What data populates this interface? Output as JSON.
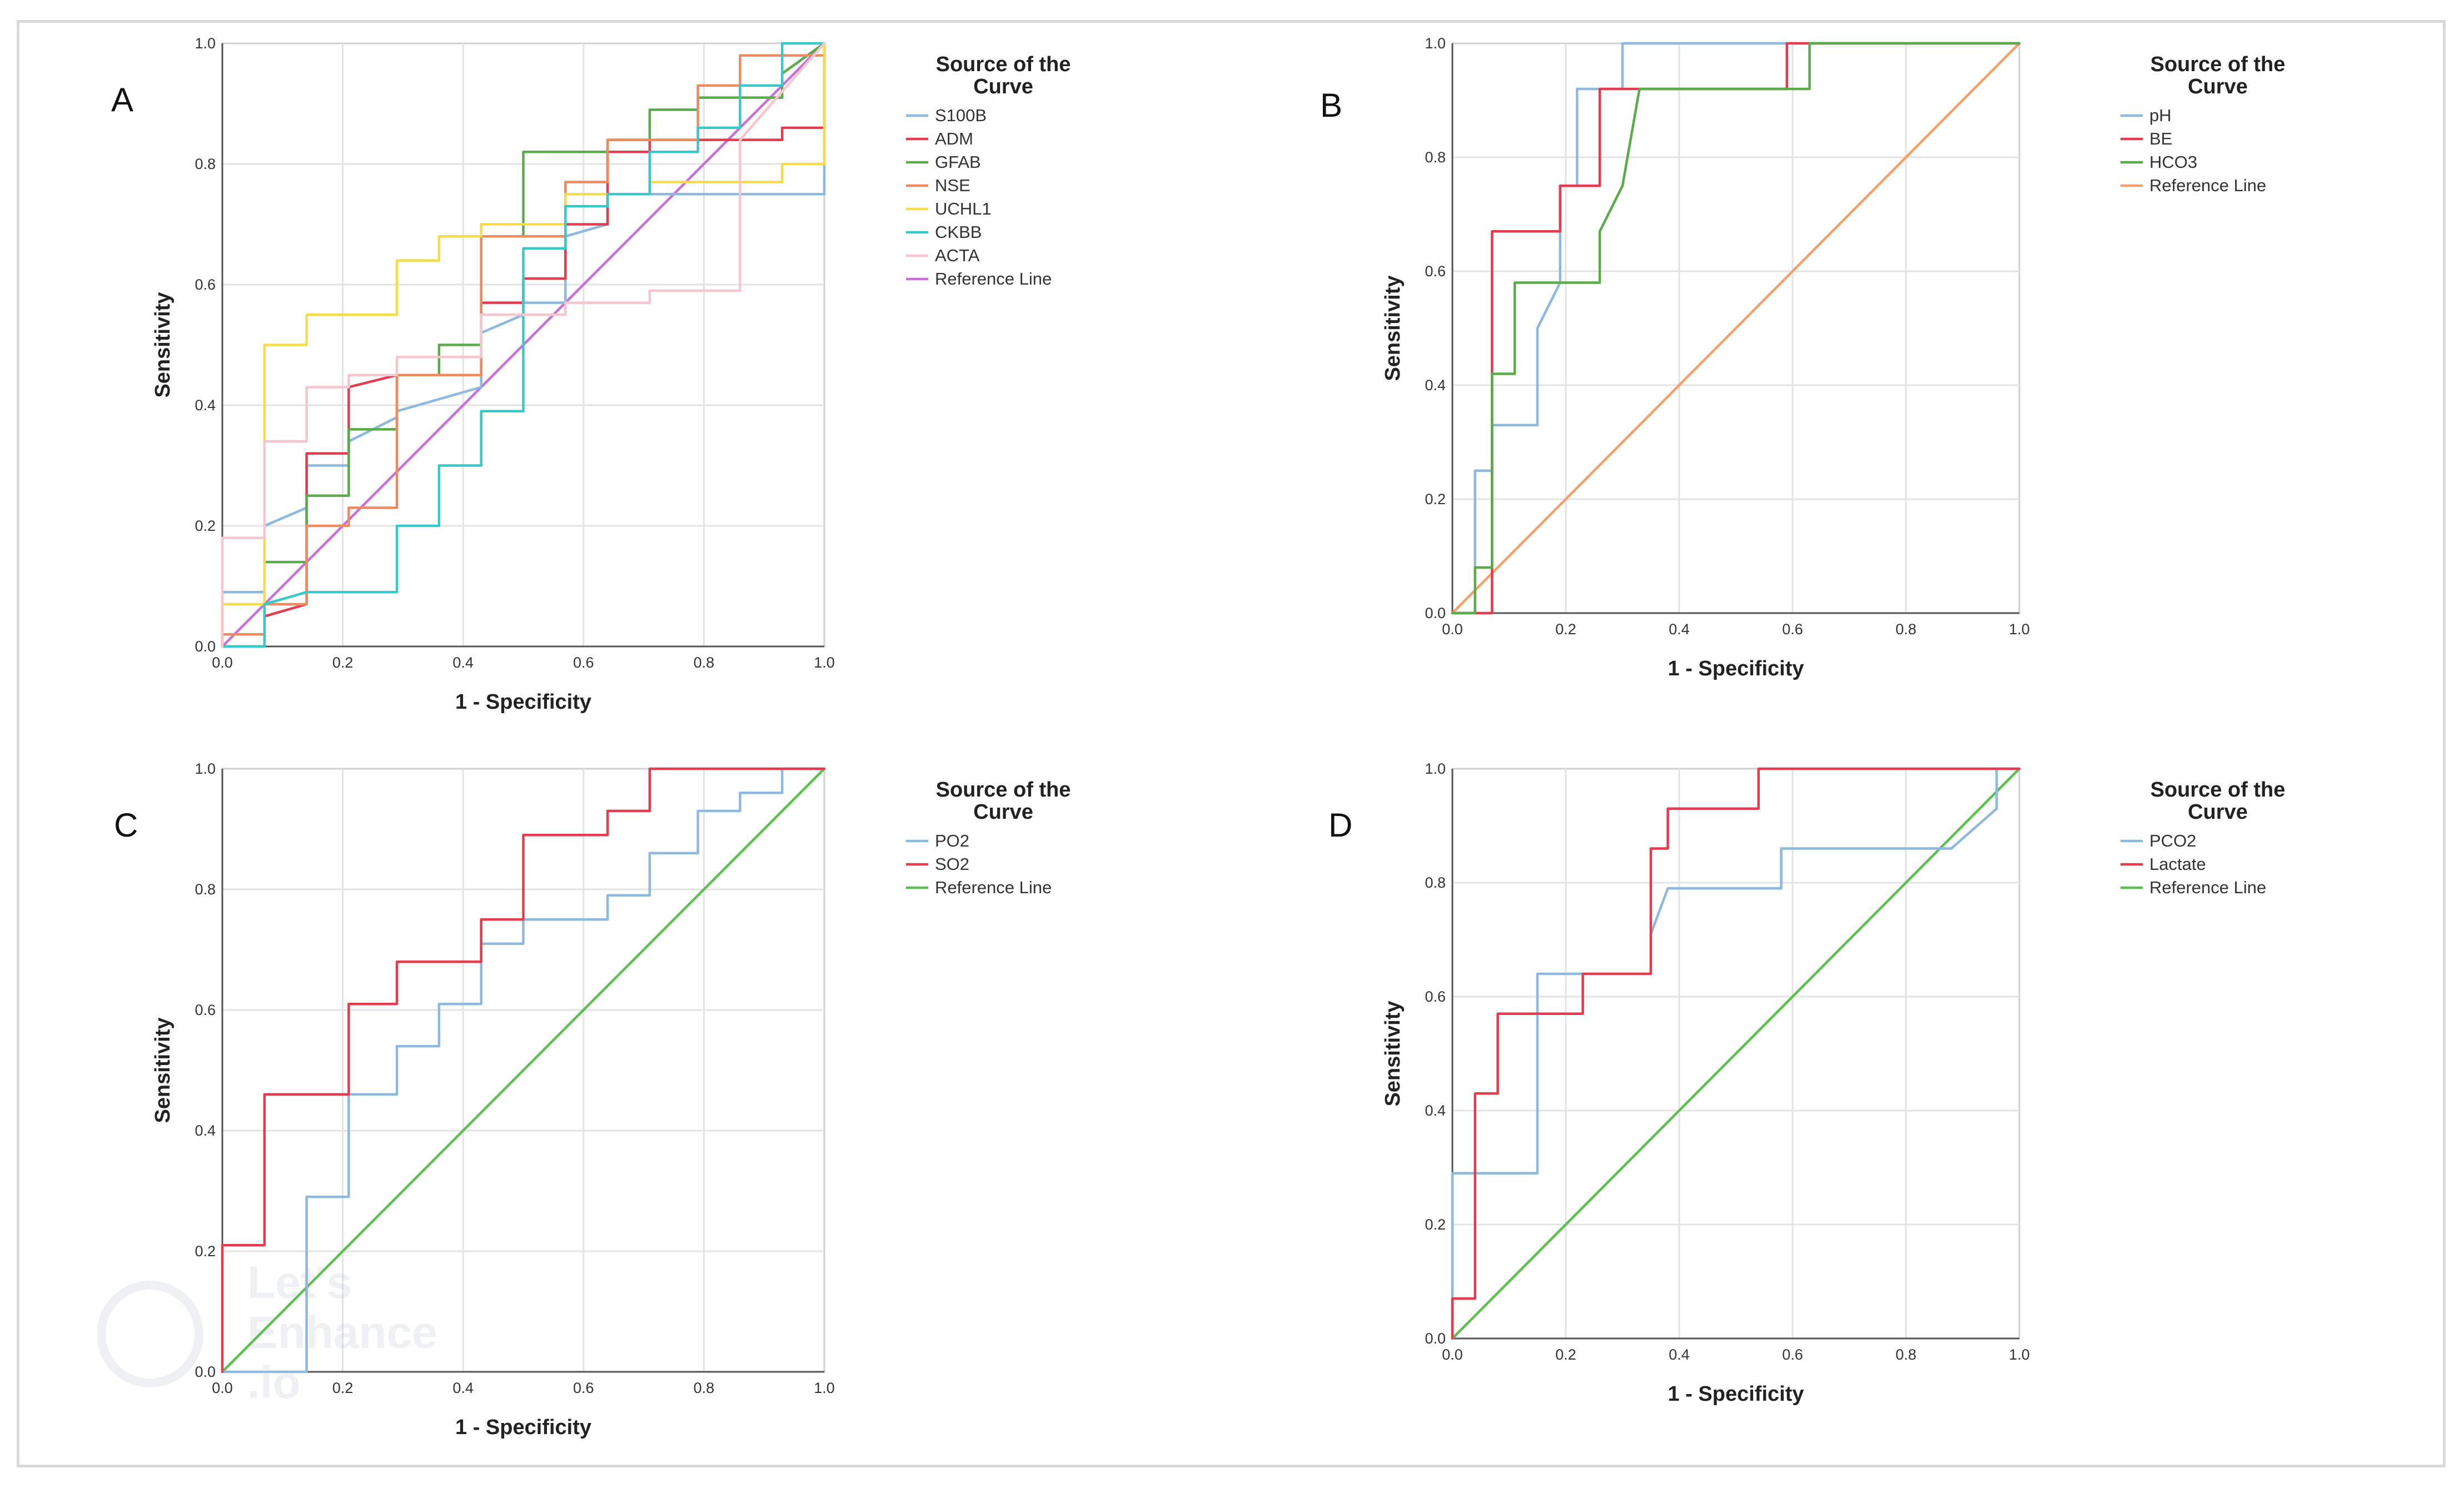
{
  "chart_data": [
    {
      "panel": "A",
      "type": "line",
      "xlabel": "1 - Specificity",
      "ylabel": "Sensitivity",
      "xlim": [
        0,
        1
      ],
      "ylim": [
        0,
        1
      ],
      "xticks": [
        "0.0",
        "0.2",
        "0.4",
        "0.6",
        "0.8",
        "1.0"
      ],
      "yticks": [
        "0.0",
        "0.2",
        "0.4",
        "0.6",
        "0.8",
        "1.0"
      ],
      "legend_title": "Source of the Curve",
      "legend_position": "right",
      "series": [
        {
          "name": "S100B",
          "color": "#8db8e0",
          "x": [
            0,
            0,
            0.07,
            0.07,
            0.14,
            0.14,
            0.21,
            0.21,
            0.29,
            0.29,
            0.43,
            0.43,
            0.5,
            0.5,
            0.57,
            0.57,
            0.64,
            0.64,
            0.71,
            0.71,
            0.86,
            0.86,
            1.0,
            1.0
          ],
          "y": [
            0,
            0.09,
            0.09,
            0.2,
            0.23,
            0.3,
            0.3,
            0.34,
            0.38,
            0.39,
            0.43,
            0.52,
            0.55,
            0.57,
            0.57,
            0.68,
            0.7,
            0.75,
            0.75,
            0.75,
            0.75,
            0.75,
            0.75,
            1.0
          ]
        },
        {
          "name": "ADM",
          "color": "#e53b4f",
          "x": [
            0,
            0,
            0.07,
            0.07,
            0.14,
            0.14,
            0.21,
            0.21,
            0.29,
            0.29,
            0.43,
            0.43,
            0.5,
            0.5,
            0.57,
            0.57,
            0.64,
            0.64,
            0.71,
            0.71,
            0.93,
            0.93,
            1.0,
            1.0
          ],
          "y": [
            0,
            0.02,
            0.02,
            0.05,
            0.07,
            0.32,
            0.32,
            0.43,
            0.45,
            0.45,
            0.45,
            0.57,
            0.57,
            0.61,
            0.61,
            0.7,
            0.7,
            0.82,
            0.82,
            0.84,
            0.84,
            0.86,
            0.86,
            1.0
          ]
        },
        {
          "name": "GFAB",
          "color": "#5aab4a",
          "x": [
            0,
            0,
            0.07,
            0.07,
            0.14,
            0.14,
            0.21,
            0.21,
            0.29,
            0.29,
            0.36,
            0.36,
            0.43,
            0.43,
            0.5,
            0.5,
            0.64,
            0.64,
            0.71,
            0.71,
            0.79,
            0.79,
            0.93,
            0.93,
            1.0
          ],
          "y": [
            0,
            0,
            0,
            0.14,
            0.14,
            0.25,
            0.25,
            0.36,
            0.36,
            0.45,
            0.45,
            0.5,
            0.5,
            0.68,
            0.68,
            0.82,
            0.82,
            0.84,
            0.84,
            0.89,
            0.89,
            0.91,
            0.91,
            0.95,
            1.0
          ]
        },
        {
          "name": "NSE",
          "color": "#f08a5e",
          "x": [
            0,
            0,
            0.07,
            0.07,
            0.14,
            0.14,
            0.21,
            0.21,
            0.29,
            0.29,
            0.43,
            0.43,
            0.57,
            0.57,
            0.64,
            0.64,
            0.79,
            0.79,
            0.86,
            0.86,
            1.0,
            1.0
          ],
          "y": [
            0,
            0.02,
            0.02,
            0.07,
            0.07,
            0.2,
            0.2,
            0.23,
            0.23,
            0.45,
            0.45,
            0.68,
            0.68,
            0.77,
            0.77,
            0.84,
            0.84,
            0.93,
            0.93,
            0.98,
            0.98,
            1.0
          ]
        },
        {
          "name": "UCHL1",
          "color": "#f7dc4a",
          "x": [
            0,
            0,
            0.07,
            0.07,
            0.14,
            0.14,
            0.29,
            0.29,
            0.36,
            0.36,
            0.43,
            0.43,
            0.57,
            0.57,
            0.71,
            0.71,
            0.93,
            0.93,
            1.0,
            1.0
          ],
          "y": [
            0,
            0.07,
            0.07,
            0.5,
            0.5,
            0.55,
            0.55,
            0.64,
            0.64,
            0.68,
            0.68,
            0.7,
            0.7,
            0.75,
            0.75,
            0.77,
            0.77,
            0.8,
            0.8,
            1.0
          ]
        },
        {
          "name": "CKBB",
          "color": "#36c9c9",
          "x": [
            0,
            0.07,
            0.07,
            0.14,
            0.14,
            0.29,
            0.29,
            0.36,
            0.36,
            0.43,
            0.43,
            0.5,
            0.5,
            0.57,
            0.57,
            0.64,
            0.64,
            0.71,
            0.71,
            0.79,
            0.79,
            0.86,
            0.86,
            0.93,
            0.93,
            1.0,
            1.0
          ],
          "y": [
            0,
            0,
            0.07,
            0.09,
            0.09,
            0.09,
            0.2,
            0.2,
            0.3,
            0.3,
            0.39,
            0.39,
            0.66,
            0.66,
            0.73,
            0.73,
            0.75,
            0.75,
            0.82,
            0.82,
            0.86,
            0.86,
            0.93,
            0.93,
            1.0,
            1.0,
            1.0
          ]
        },
        {
          "name": "ACTA",
          "color": "#f5c6cd",
          "x": [
            0,
            0,
            0.07,
            0.07,
            0.14,
            0.14,
            0.21,
            0.21,
            0.29,
            0.29,
            0.43,
            0.43,
            0.57,
            0.57,
            0.71,
            0.71,
            0.86,
            0.86,
            1.0
          ],
          "y": [
            0,
            0.18,
            0.18,
            0.34,
            0.34,
            0.43,
            0.43,
            0.45,
            0.45,
            0.48,
            0.48,
            0.55,
            0.55,
            0.57,
            0.57,
            0.59,
            0.59,
            0.84,
            1.0
          ]
        },
        {
          "name": "Reference Line",
          "color": "#c86fd8",
          "reference": true,
          "x": [
            0,
            1
          ],
          "y": [
            0,
            1
          ]
        }
      ]
    },
    {
      "panel": "B",
      "type": "line",
      "xlabel": "1 - Specificity",
      "ylabel": "Sensitivity",
      "xlim": [
        0,
        1
      ],
      "ylim": [
        0,
        1
      ],
      "xticks": [
        "0.0",
        "0.2",
        "0.4",
        "0.6",
        "0.8",
        "1.0"
      ],
      "yticks": [
        "0.0",
        "0.2",
        "0.4",
        "0.6",
        "0.8",
        "1.0"
      ],
      "legend_title": "Source of the Curve",
      "legend_position": "right",
      "series": [
        {
          "name": "pH",
          "color": "#8db8e0",
          "x": [
            0,
            0.04,
            0.04,
            0.07,
            0.07,
            0.15,
            0.15,
            0.19,
            0.19,
            0.22,
            0.22,
            0.3,
            0.3,
            0.59,
            0.59,
            1.0
          ],
          "y": [
            0,
            0,
            0.25,
            0.25,
            0.33,
            0.33,
            0.5,
            0.58,
            0.75,
            0.75,
            0.92,
            0.92,
            1.0,
            1.0,
            1.0,
            1.0
          ]
        },
        {
          "name": "BE",
          "color": "#e53b4f",
          "x": [
            0,
            0.07,
            0.07,
            0.19,
            0.19,
            0.26,
            0.26,
            0.59,
            0.59,
            1.0
          ],
          "y": [
            0,
            0,
            0.67,
            0.67,
            0.75,
            0.75,
            0.92,
            0.92,
            1.0,
            1.0
          ]
        },
        {
          "name": "HCO3",
          "color": "#5aab4a",
          "x": [
            0,
            0.04,
            0.04,
            0.07,
            0.07,
            0.11,
            0.11,
            0.26,
            0.26,
            0.3,
            0.3,
            0.33,
            0.33,
            0.63,
            0.63,
            1.0
          ],
          "y": [
            0,
            0,
            0.08,
            0.08,
            0.42,
            0.42,
            0.58,
            0.58,
            0.67,
            0.75,
            0.75,
            0.92,
            0.92,
            0.92,
            1.0,
            1.0
          ]
        },
        {
          "name": "Reference Line",
          "color": "#f4a06a",
          "reference": true,
          "x": [
            0,
            1
          ],
          "y": [
            0,
            1
          ]
        }
      ]
    },
    {
      "panel": "C",
      "type": "line",
      "xlabel": "1 - Specificity",
      "ylabel": "Sensitivity",
      "xlim": [
        0,
        1
      ],
      "ylim": [
        0,
        1
      ],
      "xticks": [
        "0.0",
        "0.2",
        "0.4",
        "0.6",
        "0.8",
        "1.0"
      ],
      "yticks": [
        "0.0",
        "0.2",
        "0.4",
        "0.6",
        "0.8",
        "1.0"
      ],
      "legend_title": "Source of the Curve",
      "legend_position": "right",
      "series": [
        {
          "name": "PO2",
          "color": "#8db8e0",
          "x": [
            0,
            0.14,
            0.14,
            0.21,
            0.21,
            0.29,
            0.29,
            0.36,
            0.36,
            0.43,
            0.43,
            0.5,
            0.5,
            0.64,
            0.64,
            0.71,
            0.71,
            0.79,
            0.79,
            0.86,
            0.86,
            0.93,
            0.93,
            1.0
          ],
          "y": [
            0,
            0,
            0.29,
            0.29,
            0.46,
            0.46,
            0.54,
            0.54,
            0.61,
            0.61,
            0.71,
            0.71,
            0.75,
            0.75,
            0.79,
            0.79,
            0.86,
            0.86,
            0.93,
            0.93,
            0.96,
            0.96,
            1.0,
            1.0
          ]
        },
        {
          "name": "SO2",
          "color": "#e53b4f",
          "x": [
            0,
            0,
            0.07,
            0.07,
            0.21,
            0.21,
            0.29,
            0.29,
            0.43,
            0.43,
            0.5,
            0.5,
            0.64,
            0.64,
            0.71,
            0.71,
            0.79,
            1.0
          ],
          "y": [
            0,
            0.21,
            0.21,
            0.46,
            0.46,
            0.61,
            0.61,
            0.68,
            0.68,
            0.75,
            0.75,
            0.89,
            0.89,
            0.93,
            0.93,
            1.0,
            1.0,
            1.0
          ]
        },
        {
          "name": "Reference Line",
          "color": "#5cc04e",
          "reference": true,
          "x": [
            0,
            1
          ],
          "y": [
            0,
            1
          ]
        }
      ]
    },
    {
      "panel": "D",
      "type": "line",
      "xlabel": "1 - Specificity",
      "ylabel": "Sensitivity",
      "xlim": [
        0,
        1
      ],
      "ylim": [
        0,
        1
      ],
      "xticks": [
        "0.0",
        "0.2",
        "0.4",
        "0.6",
        "0.8",
        "1.0"
      ],
      "yticks": [
        "0.0",
        "0.2",
        "0.4",
        "0.6",
        "0.8",
        "1.0"
      ],
      "legend_title": "Source of the Curve",
      "legend_position": "right",
      "series": [
        {
          "name": "PCO2",
          "color": "#8db8e0",
          "x": [
            0,
            0,
            0.15,
            0.15,
            0.23,
            0.23,
            0.35,
            0.35,
            0.38,
            0.38,
            0.58,
            0.58,
            0.88,
            0.88,
            0.96,
            0.96,
            1.0
          ],
          "y": [
            0,
            0.29,
            0.29,
            0.64,
            0.64,
            0.64,
            0.64,
            0.71,
            0.79,
            0.79,
            0.79,
            0.86,
            0.86,
            0.86,
            0.93,
            1.0,
            1.0
          ]
        },
        {
          "name": "Lactate",
          "color": "#e53b4f",
          "x": [
            0,
            0,
            0.04,
            0.04,
            0.08,
            0.08,
            0.23,
            0.23,
            0.35,
            0.35,
            0.38,
            0.38,
            0.54,
            0.54,
            1.0
          ],
          "y": [
            0,
            0.07,
            0.07,
            0.43,
            0.43,
            0.57,
            0.57,
            0.64,
            0.64,
            0.86,
            0.86,
            0.93,
            0.93,
            1.0,
            1.0
          ]
        },
        {
          "name": "Reference Line",
          "color": "#5cc04e",
          "reference": true,
          "x": [
            0,
            1
          ],
          "y": [
            0,
            1
          ]
        }
      ]
    }
  ],
  "watermark": {
    "line1": "Let's",
    "line2": "Enhance",
    "line3": ".io"
  }
}
